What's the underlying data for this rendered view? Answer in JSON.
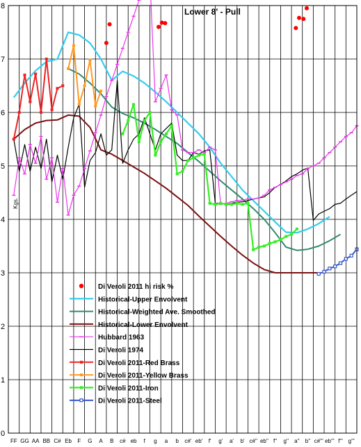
{
  "chart_data": {
    "type": "line",
    "title": "Lower 8' - Pull",
    "ylabel": "Kgs.",
    "xlabel": "",
    "ylim": [
      0,
      8
    ],
    "yticks": [
      0,
      1,
      2,
      3,
      4,
      5,
      6,
      7,
      8
    ],
    "grid": true,
    "legend_position": "lower-left",
    "categories": [
      "FF",
      "GG",
      "AA",
      "BB",
      "C#",
      "Eb",
      "F",
      "G",
      "A",
      "B",
      "c#",
      "eb",
      "f",
      "g",
      "a",
      "b",
      "c#'",
      "eb'",
      "f'",
      "g'",
      "a'",
      "b'",
      "c#''",
      "eb''",
      "f''",
      "g''",
      "a''",
      "b''",
      "c#'''",
      "eb'''",
      "f'''",
      "g'''"
    ],
    "series": [
      {
        "name": "Di Veroli 2011 hi risk %",
        "color": "#ff0000",
        "style": "markers",
        "marker": "circle",
        "x": [
          8.5,
          8.8,
          13.3,
          13.6,
          13.9,
          25.9,
          26.2,
          26.6,
          26.9
        ],
        "y": [
          7.3,
          7.65,
          7.6,
          7.68,
          7.67,
          7.58,
          7.77,
          7.75,
          7.95
        ]
      },
      {
        "name": "Historical-Upper Envolvent",
        "color": "#33ccee",
        "style": "line",
        "width": 2.2,
        "x": [
          0,
          1,
          2,
          3,
          4,
          5,
          6,
          7,
          8,
          9,
          10,
          11,
          12,
          13,
          14,
          15,
          16,
          17,
          18,
          19,
          20,
          21,
          22,
          23,
          24,
          25,
          26,
          27,
          28,
          29
        ],
        "y": [
          6.28,
          6.55,
          6.78,
          6.95,
          7.0,
          7.5,
          7.45,
          7.3,
          7.0,
          6.6,
          6.77,
          6.68,
          6.55,
          6.38,
          6.2,
          6.0,
          5.8,
          5.6,
          5.35,
          5.05,
          4.8,
          4.55,
          4.35,
          4.15,
          3.95,
          3.76,
          3.75,
          3.82,
          3.92,
          4.05
        ]
      },
      {
        "name": "Historical-Weighted Ave. Smoothed",
        "color": "#2e8b6e",
        "style": "line",
        "width": 2.0,
        "x": [
          5,
          6,
          7,
          8,
          9,
          10,
          11,
          12,
          13,
          14,
          15,
          16,
          17,
          18,
          19,
          20,
          21,
          22,
          23,
          24,
          25,
          26,
          27,
          28,
          29,
          30
        ],
        "y": [
          6.82,
          6.72,
          6.55,
          6.35,
          6.1,
          5.98,
          5.9,
          5.8,
          5.68,
          5.55,
          5.42,
          5.25,
          5.08,
          4.9,
          4.72,
          4.55,
          4.38,
          4.2,
          4.0,
          3.75,
          3.48,
          3.42,
          3.44,
          3.5,
          3.6,
          3.72
        ]
      },
      {
        "name": "Historical-Lower Envolvent",
        "color": "#7b0f0f",
        "style": "line",
        "width": 2.0,
        "x": [
          0,
          1,
          2,
          3,
          4,
          5,
          6,
          7,
          8,
          9,
          10,
          11,
          12,
          13,
          14,
          15,
          16,
          17,
          18,
          19,
          20,
          21,
          22,
          23,
          24,
          25,
          26,
          27,
          28
        ],
        "y": [
          5.5,
          5.68,
          5.8,
          5.85,
          5.86,
          5.95,
          5.93,
          5.72,
          5.3,
          5.22,
          5.1,
          4.98,
          4.86,
          4.72,
          4.58,
          4.42,
          4.26,
          4.06,
          3.87,
          3.68,
          3.5,
          3.33,
          3.18,
          3.06,
          3.0,
          3.0,
          3.0,
          3.0,
          3.0
        ]
      },
      {
        "name": "Hubbard 1963",
        "color": "#ee33ee",
        "style": "line-markers",
        "marker": "dash",
        "width": 1.2,
        "x": [
          0,
          0.5,
          1,
          1.5,
          2,
          2.5,
          3,
          3.5,
          4,
          4.5,
          5,
          5.5,
          6,
          6.5,
          7,
          7.5,
          8,
          8.5,
          9,
          9.5,
          10,
          10.5,
          11,
          11.5,
          12,
          12.5,
          13,
          13.5,
          14,
          14.5,
          15,
          15.5,
          16,
          16.5,
          17,
          17.5,
          18,
          18.5,
          19,
          19.5,
          20,
          20.5,
          21,
          21.5,
          22,
          22.5,
          23,
          23.5,
          24,
          24.5,
          25,
          25.5,
          26,
          26.5,
          27,
          27.5,
          28,
          28.5,
          29,
          29.5,
          30,
          30.5,
          31,
          31.5
        ],
        "y": [
          4.45,
          5.15,
          4.85,
          5.4,
          5.05,
          5.55,
          4.75,
          5.15,
          4.32,
          4.95,
          4.08,
          4.45,
          4.62,
          4.95,
          5.28,
          5.62,
          5.95,
          6.3,
          6.6,
          6.9,
          7.2,
          7.5,
          7.8,
          8.1,
          8.3,
          8.5,
          6.2,
          6.45,
          6.7,
          6.05,
          5.95,
          5.3,
          5.25,
          5.25,
          5.3,
          5.25,
          5.35,
          5.3,
          4.28,
          4.3,
          4.33,
          4.35,
          4.36,
          4.38,
          4.38,
          4.4,
          4.45,
          4.55,
          4.6,
          4.65,
          4.7,
          4.75,
          4.82,
          4.85,
          4.95,
          5.0,
          5.05,
          5.15,
          5.25,
          5.35,
          5.45,
          5.55,
          5.62,
          5.75
        ]
      },
      {
        "name": "Di Veroli 1974",
        "color": "#000000",
        "style": "line",
        "width": 1.2,
        "x": [
          0,
          0.5,
          1,
          1.5,
          2,
          2.5,
          3,
          3.5,
          4,
          4.5,
          5,
          5.5,
          6,
          6.5,
          7,
          7.5,
          8,
          8.5,
          9,
          9.5,
          10,
          10.5,
          11,
          11.5,
          12,
          12.5,
          13,
          13.5,
          14,
          14.5,
          15,
          15.5,
          16,
          16.5,
          17,
          17.5,
          18,
          18.5,
          19,
          19.5,
          20,
          20.5,
          21,
          21.5,
          22,
          22.5,
          23,
          23.5,
          24,
          24.5,
          25,
          25.5,
          26,
          26.5,
          27,
          27.5,
          28,
          28.5,
          29,
          29.5,
          30,
          30.5,
          31,
          31.5
        ],
        "y": [
          5.5,
          4.9,
          5.4,
          4.9,
          5.35,
          4.95,
          5.5,
          4.7,
          5.2,
          4.75,
          5.35,
          5.9,
          6.15,
          4.6,
          5.1,
          5.25,
          5.6,
          5.2,
          5.3,
          6.6,
          5.05,
          5.3,
          5.5,
          5.6,
          5.9,
          5.6,
          5.3,
          5.6,
          5.7,
          5.8,
          5.2,
          5.1,
          5.1,
          5.25,
          5.22,
          5.28,
          5.3,
          4.3,
          4.3,
          4.28,
          4.3,
          4.32,
          4.33,
          4.35,
          4.38,
          4.4,
          4.42,
          4.5,
          4.6,
          4.65,
          4.72,
          4.8,
          4.85,
          4.92,
          4.96,
          3.98,
          4.1,
          4.15,
          4.2,
          4.28,
          4.3,
          4.38,
          4.45,
          4.52
        ]
      },
      {
        "name": "Di Veroli 2011-Red Brass",
        "color": "#ee2222",
        "style": "line-markers",
        "marker": "square",
        "width": 2.0,
        "x": [
          0,
          0.5,
          1,
          1.5,
          2,
          2.5,
          3,
          3.5,
          4,
          4.5
        ],
        "y": [
          5.5,
          6.0,
          6.7,
          6.2,
          6.72,
          6.0,
          7.0,
          6.05,
          6.45,
          6.5
        ]
      },
      {
        "name": "Di Veroli 2011-Yellow Brass",
        "color": "#ff9922",
        "style": "line-markers",
        "marker": "square",
        "width": 2.0,
        "x": [
          5,
          5.5,
          6,
          6.5,
          7,
          7.5,
          8
        ],
        "y": [
          6.82,
          7.25,
          6.15,
          6.5,
          6.98,
          6.12,
          6.4
        ]
      },
      {
        "name": "Di Veroli 2011-Iron",
        "color": "#33ee22",
        "style": "line-markers",
        "marker": "square",
        "width": 2.2,
        "x": [
          10,
          10.5,
          11,
          11.5,
          12,
          12.5,
          13,
          13.5,
          14,
          14.5,
          15,
          15.5,
          16,
          16.5,
          17,
          17.5,
          18,
          18.5,
          19,
          19.5,
          20,
          20.5,
          21,
          21.5,
          22,
          22.5,
          23,
          23.5,
          24,
          24.5,
          25,
          25.5,
          26
        ],
        "y": [
          5.6,
          5.85,
          6.15,
          5.45,
          5.85,
          6.0,
          5.2,
          5.45,
          5.6,
          5.75,
          4.85,
          4.9,
          5.1,
          5.15,
          5.2,
          5.22,
          4.3,
          4.28,
          4.3,
          4.28,
          4.28,
          4.3,
          4.28,
          4.3,
          3.43,
          3.48,
          3.5,
          3.55,
          3.58,
          3.62,
          3.68,
          3.72,
          3.82
        ]
      },
      {
        "name": "Di Veroli 2011-Steel",
        "color": "#3355cc",
        "style": "line-markers",
        "marker": "hollow-square",
        "width": 2.0,
        "x": [
          28,
          28.5,
          29,
          29.5,
          30,
          30.5,
          31,
          31.5
        ],
        "y": [
          2.98,
          3.02,
          3.08,
          3.12,
          3.18,
          3.26,
          3.32,
          3.44
        ]
      }
    ]
  }
}
